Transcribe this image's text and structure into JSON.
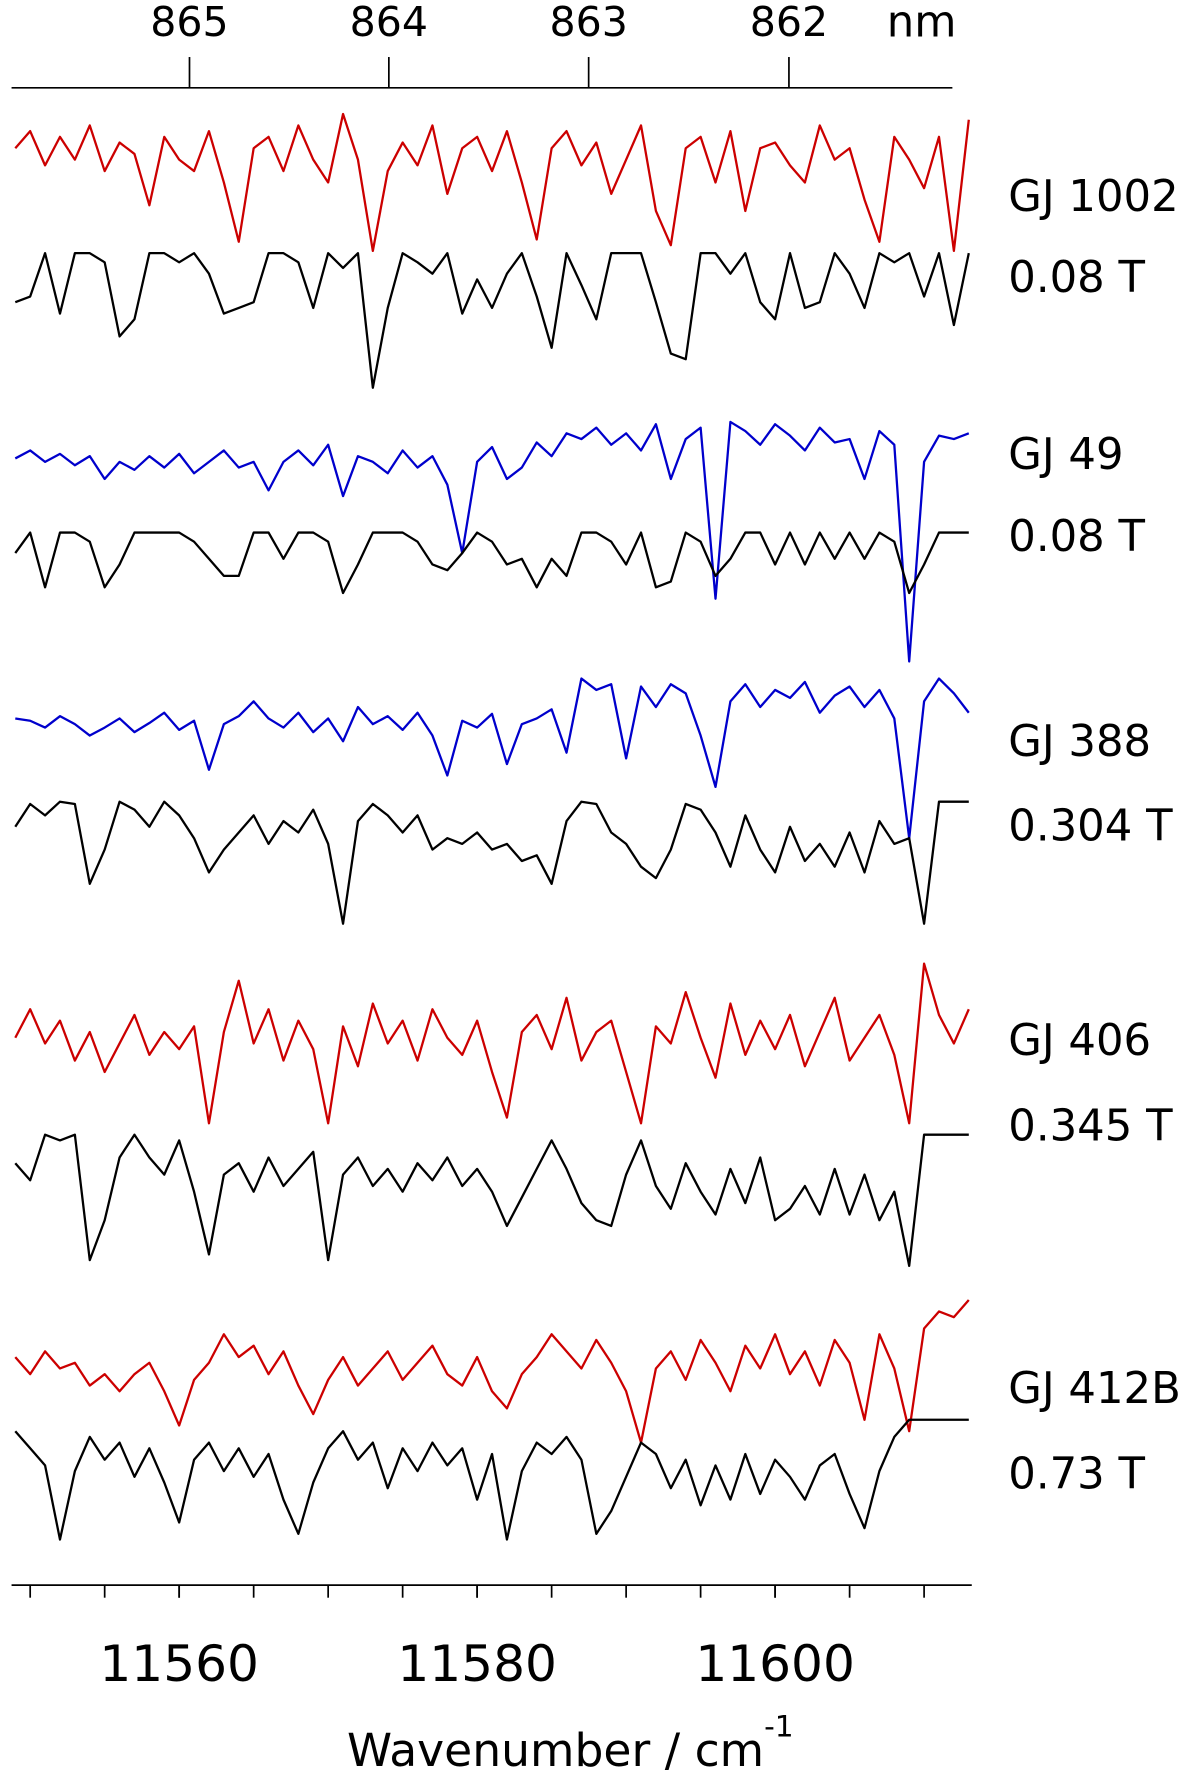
{
  "chart_data": {
    "type": "line",
    "xlabel": "Wavenumber / cm",
    "xlabel_sup": "-1",
    "x2label": "nm",
    "xlim": [
      11548.75,
      11613.2
    ],
    "xticks": [
      11560,
      11580,
      11600
    ],
    "xminorticks": [
      11550,
      11555,
      11560,
      11565,
      11570,
      11575,
      11580,
      11585,
      11590,
      11595,
      11600,
      11605,
      11610
    ],
    "x2ticks": [
      865,
      864,
      863,
      862
    ],
    "ylim": [
      0,
      14
    ],
    "x": [
      11549,
      11550,
      11551,
      11552,
      11553,
      11554,
      11555,
      11556,
      11557,
      11558,
      11559,
      11560,
      11561,
      11562,
      11563,
      11564,
      11565,
      11566,
      11567,
      11568,
      11569,
      11570,
      11571,
      11572,
      11573,
      11574,
      11575,
      11576,
      11577,
      11578,
      11579,
      11580,
      11581,
      11582,
      11583,
      11584,
      11585,
      11586,
      11587,
      11588,
      11589,
      11590,
      11591,
      11592,
      11593,
      11594,
      11595,
      11596,
      11597,
      11598,
      11599,
      11600,
      11601,
      11602,
      11603,
      11604,
      11605,
      11606,
      11607,
      11608,
      11609,
      11610,
      11611,
      11612,
      11613
    ],
    "series": [
      {
        "name": "GJ 1002",
        "color": "#cc0000",
        "values": [
          12.7,
          12.85,
          12.55,
          12.8,
          12.6,
          12.9,
          12.5,
          12.75,
          12.65,
          12.2,
          12.8,
          12.6,
          12.5,
          12.85,
          12.4,
          11.88,
          12.7,
          12.8,
          12.5,
          12.9,
          12.6,
          12.4,
          13.0,
          12.6,
          11.8,
          12.5,
          12.75,
          12.55,
          12.9,
          12.3,
          12.7,
          12.8,
          12.5,
          12.85,
          12.4,
          11.9,
          12.7,
          12.85,
          12.55,
          12.75,
          12.3,
          12.6,
          12.9,
          12.15,
          11.85,
          12.7,
          12.8,
          12.4,
          12.85,
          12.15,
          12.7,
          12.75,
          12.55,
          12.4,
          12.9,
          12.6,
          12.7,
          12.25,
          11.88,
          12.8,
          12.6,
          12.35,
          12.8,
          11.8,
          12.95
        ]
      },
      {
        "name": "0.08 T",
        "color": "#000000",
        "values": [
          11.35,
          11.4,
          11.78,
          11.25,
          11.78,
          11.78,
          11.7,
          11.05,
          11.2,
          11.78,
          11.78,
          11.7,
          11.78,
          11.6,
          11.25,
          11.3,
          11.35,
          11.78,
          11.78,
          11.7,
          11.3,
          11.78,
          11.65,
          11.78,
          10.6,
          11.3,
          11.78,
          11.7,
          11.6,
          11.78,
          11.25,
          11.55,
          11.3,
          11.6,
          11.78,
          11.4,
          10.95,
          11.78,
          11.5,
          11.2,
          11.78,
          11.78,
          11.78,
          11.35,
          10.9,
          10.85,
          11.78,
          11.78,
          11.6,
          11.78,
          11.35,
          11.2,
          11.78,
          11.3,
          11.35,
          11.78,
          11.6,
          11.3,
          11.78,
          11.7,
          11.78,
          11.4,
          11.78,
          11.15,
          11.78
        ]
      },
      {
        "name": "GJ 49",
        "color": "#0000cc",
        "values": [
          9.98,
          10.05,
          9.95,
          10.02,
          9.92,
          10.0,
          9.8,
          9.95,
          9.88,
          10.0,
          9.9,
          10.02,
          9.85,
          9.95,
          10.05,
          9.9,
          9.95,
          9.7,
          9.95,
          10.05,
          9.92,
          10.1,
          9.65,
          10.0,
          9.95,
          9.85,
          10.05,
          9.9,
          10.0,
          9.75,
          9.15,
          9.95,
          10.08,
          9.8,
          9.9,
          10.12,
          10.0,
          10.2,
          10.15,
          10.25,
          10.1,
          10.2,
          10.05,
          10.28,
          9.8,
          10.15,
          10.25,
          8.75,
          10.3,
          10.22,
          10.1,
          10.28,
          10.18,
          10.05,
          10.25,
          10.12,
          10.15,
          9.8,
          10.22,
          10.1,
          8.2,
          9.95,
          10.18,
          10.15,
          10.2
        ]
      },
      {
        "name": "0.08 T",
        "color": "#000000",
        "values": [
          9.15,
          9.33,
          8.85,
          9.33,
          9.33,
          9.25,
          8.85,
          9.05,
          9.33,
          9.33,
          9.33,
          9.33,
          9.25,
          9.1,
          8.95,
          8.95,
          9.33,
          9.33,
          9.1,
          9.33,
          9.33,
          9.25,
          8.8,
          9.05,
          9.33,
          9.33,
          9.33,
          9.25,
          9.05,
          9.0,
          9.15,
          9.33,
          9.25,
          9.05,
          9.1,
          8.85,
          9.1,
          8.95,
          9.33,
          9.33,
          9.25,
          9.05,
          9.33,
          8.85,
          8.9,
          9.33,
          9.25,
          8.95,
          9.1,
          9.33,
          9.33,
          9.05,
          9.33,
          9.05,
          9.33,
          9.1,
          9.33,
          9.1,
          9.33,
          9.25,
          8.8,
          9.05,
          9.33,
          9.33,
          9.33
        ]
      },
      {
        "name": "GJ 388",
        "color": "#0000cc",
        "values": [
          7.7,
          7.68,
          7.62,
          7.72,
          7.65,
          7.55,
          7.62,
          7.7,
          7.58,
          7.66,
          7.75,
          7.6,
          7.68,
          7.25,
          7.65,
          7.72,
          7.85,
          7.7,
          7.62,
          7.75,
          7.58,
          7.7,
          7.5,
          7.8,
          7.65,
          7.72,
          7.6,
          7.75,
          7.55,
          7.2,
          7.68,
          7.62,
          7.74,
          7.3,
          7.65,
          7.7,
          7.78,
          7.4,
          8.05,
          7.95,
          8.0,
          7.35,
          7.98,
          7.8,
          8.0,
          7.92,
          7.55,
          7.1,
          7.85,
          8.0,
          7.8,
          7.95,
          7.88,
          8.02,
          7.75,
          7.9,
          7.98,
          7.8,
          7.95,
          7.7,
          6.65,
          7.85,
          8.05,
          7.92,
          7.75
        ]
      },
      {
        "name": "0.304 T",
        "color": "#000000",
        "values": [
          6.75,
          6.95,
          6.85,
          6.97,
          6.95,
          6.25,
          6.55,
          6.97,
          6.9,
          6.75,
          6.97,
          6.85,
          6.65,
          6.35,
          6.55,
          6.7,
          6.85,
          6.6,
          6.8,
          6.7,
          6.9,
          6.6,
          5.9,
          6.8,
          6.95,
          6.85,
          6.7,
          6.85,
          6.55,
          6.65,
          6.6,
          6.7,
          6.55,
          6.6,
          6.45,
          6.5,
          6.25,
          6.8,
          6.97,
          6.95,
          6.7,
          6.6,
          6.4,
          6.3,
          6.55,
          6.95,
          6.9,
          6.7,
          6.4,
          6.85,
          6.55,
          6.35,
          6.75,
          6.45,
          6.6,
          6.4,
          6.7,
          6.35,
          6.8,
          6.6,
          6.65,
          5.9,
          6.97,
          6.97,
          6.97
        ]
      },
      {
        "name": "GJ 406",
        "color": "#cc0000",
        "values": [
          4.9,
          5.15,
          4.85,
          5.05,
          4.7,
          4.95,
          4.6,
          4.85,
          5.1,
          4.75,
          4.95,
          4.8,
          5.0,
          4.15,
          4.95,
          5.4,
          4.85,
          5.15,
          4.7,
          5.05,
          4.8,
          4.15,
          5.0,
          4.65,
          5.2,
          4.85,
          5.05,
          4.7,
          5.15,
          4.9,
          4.75,
          5.05,
          4.6,
          4.2,
          4.95,
          5.1,
          4.8,
          5.25,
          4.7,
          4.95,
          5.05,
          4.6,
          4.15,
          5.0,
          4.85,
          5.3,
          4.9,
          4.55,
          5.2,
          4.75,
          5.05,
          4.8,
          5.1,
          4.65,
          4.95,
          5.25,
          4.7,
          4.9,
          5.1,
          4.75,
          4.15,
          5.55,
          5.1,
          4.85,
          5.15
        ]
      },
      {
        "name": "0.345 T",
        "color": "#000000",
        "values": [
          3.8,
          3.65,
          4.05,
          4.0,
          4.05,
          2.95,
          3.3,
          3.85,
          4.05,
          3.85,
          3.7,
          4.0,
          3.55,
          3.0,
          3.7,
          3.8,
          3.55,
          3.85,
          3.6,
          3.75,
          3.9,
          2.95,
          3.7,
          3.85,
          3.6,
          3.75,
          3.55,
          3.8,
          3.65,
          3.85,
          3.6,
          3.75,
          3.55,
          3.25,
          3.5,
          3.75,
          4.0,
          3.75,
          3.45,
          3.3,
          3.25,
          3.7,
          4.0,
          3.6,
          3.4,
          3.8,
          3.55,
          3.35,
          3.75,
          3.45,
          3.85,
          3.3,
          3.4,
          3.6,
          3.35,
          3.75,
          3.35,
          3.7,
          3.3,
          3.55,
          2.9,
          4.05,
          4.05,
          4.05,
          4.05
        ]
      },
      {
        "name": "GJ 412B",
        "color": "#cc0000",
        "values": [
          2.1,
          1.95,
          2.15,
          2.0,
          2.05,
          1.85,
          1.95,
          1.8,
          1.95,
          2.05,
          1.8,
          1.5,
          1.9,
          2.05,
          2.3,
          2.1,
          2.2,
          1.95,
          2.15,
          1.85,
          1.6,
          1.9,
          2.1,
          1.85,
          2.0,
          2.15,
          1.9,
          2.05,
          2.2,
          1.95,
          1.85,
          2.1,
          1.8,
          1.65,
          1.95,
          2.1,
          2.3,
          2.15,
          2.0,
          2.25,
          2.05,
          1.8,
          1.35,
          2.0,
          2.15,
          1.9,
          2.25,
          2.05,
          1.8,
          2.2,
          2.0,
          2.3,
          1.95,
          2.15,
          1.85,
          2.25,
          2.05,
          1.55,
          2.3,
          2.0,
          1.45,
          2.35,
          2.5,
          2.45,
          2.6
        ]
      },
      {
        "name": "0.73 T",
        "color": "#000000",
        "values": [
          1.45,
          1.3,
          1.15,
          0.5,
          1.1,
          1.4,
          1.2,
          1.35,
          1.05,
          1.3,
          1.0,
          0.65,
          1.2,
          1.35,
          1.1,
          1.3,
          1.05,
          1.25,
          0.85,
          0.55,
          1.0,
          1.3,
          1.45,
          1.2,
          1.35,
          0.95,
          1.3,
          1.1,
          1.35,
          1.15,
          1.3,
          0.85,
          1.25,
          0.5,
          1.1,
          1.35,
          1.25,
          1.4,
          1.2,
          0.55,
          0.75,
          1.05,
          1.35,
          1.25,
          0.95,
          1.2,
          0.8,
          1.15,
          0.85,
          1.25,
          0.9,
          1.2,
          1.05,
          0.85,
          1.15,
          1.25,
          0.9,
          0.6,
          1.1,
          1.4,
          1.55,
          1.55,
          1.55,
          1.55,
          1.55
        ]
      }
    ]
  }
}
